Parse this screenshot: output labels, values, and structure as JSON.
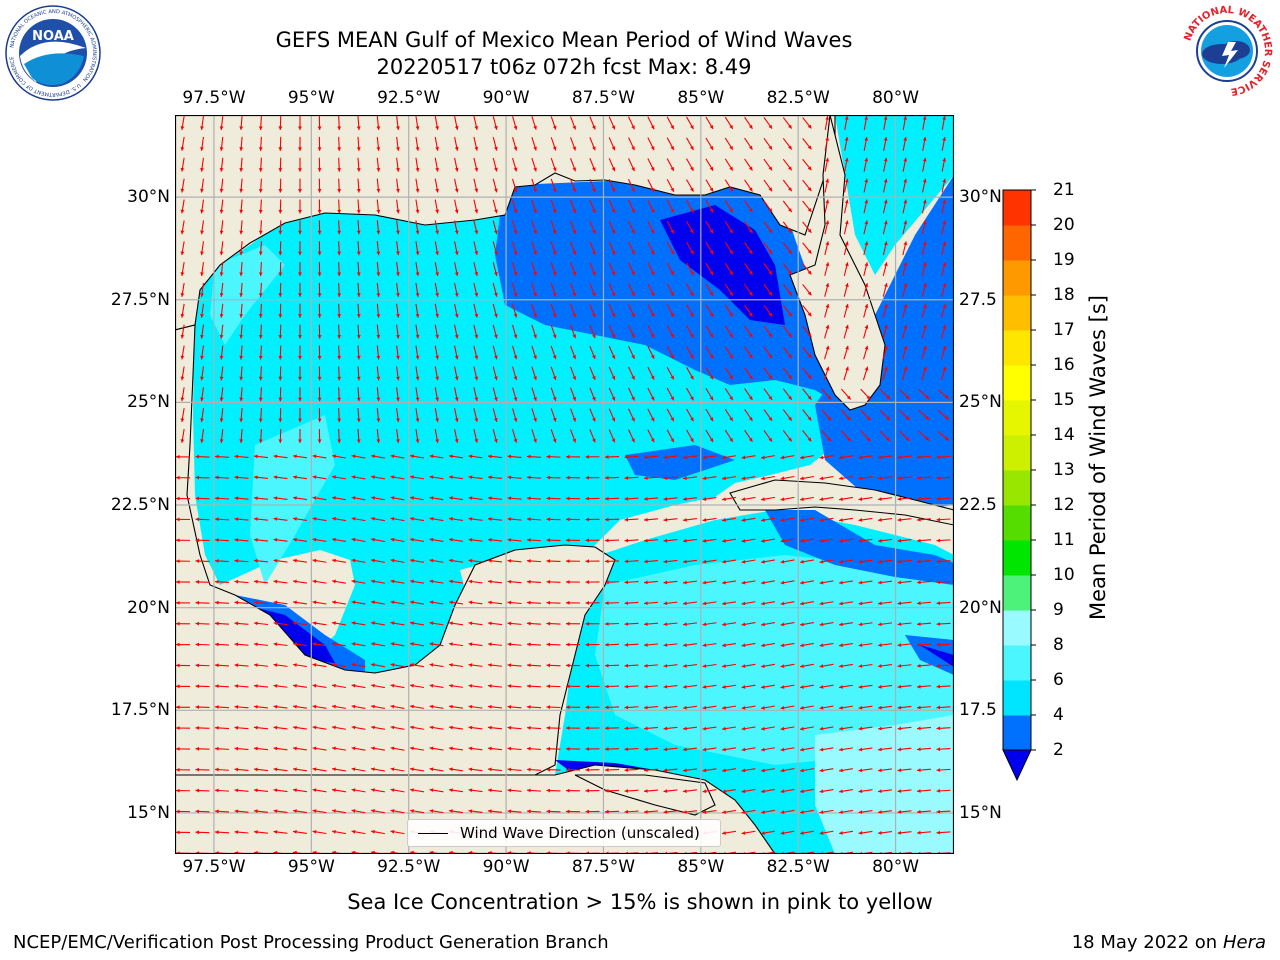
{
  "title": {
    "line1": "GEFS MEAN Gulf of Mexico Mean Period of Wind Waves",
    "line2": "20220517 t06z 072h fcst   Max: 8.49"
  },
  "map": {
    "lon_range": [
      -98.5,
      -78.5
    ],
    "lat_range": [
      14.0,
      32.0
    ],
    "lon_ticks": [
      "97.5°W",
      "95°W",
      "92.5°W",
      "90°W",
      "87.5°W",
      "85°W",
      "82.5°W",
      "80°W"
    ],
    "lon_tick_values": [
      -97.5,
      -95,
      -92.5,
      -90,
      -87.5,
      -85,
      -82.5,
      -80
    ],
    "lat_ticks_left": [
      "15°N",
      "17.5°N",
      "20°N",
      "22.5°N",
      "25°N",
      "27.5°N",
      "30°N"
    ],
    "lat_ticks_right": [
      "15°N",
      "17.5",
      "20°N",
      "22.5",
      "25°N",
      "27.5",
      "30°N"
    ],
    "lat_tick_values": [
      15,
      17.5,
      20,
      22.5,
      25,
      27.5,
      30
    ],
    "land_color": "#efecdc",
    "grid": true,
    "grid_color": "#b0b0b0"
  },
  "colorbar": {
    "label": "Mean Period of Wind Waves [s]",
    "tick_labels": [
      "2",
      "4",
      "6",
      "8",
      "9",
      "10",
      "11",
      "12",
      "13",
      "14",
      "15",
      "16",
      "17",
      "18",
      "19",
      "20",
      "21"
    ],
    "colors": [
      "#0070ff",
      "#00e5ff",
      "#4cf6ff",
      "#99fbff",
      "#4cf27a",
      "#00e600",
      "#55dd00",
      "#99e600",
      "#ccf000",
      "#e6f500",
      "#ffff00",
      "#ffe600",
      "#ffbf00",
      "#ff9900",
      "#ff6600",
      "#ff3300"
    ],
    "under_color": "#0000ee"
  },
  "legend": {
    "label": "Wind Wave Direction (unscaled)"
  },
  "bottom_note": "Sea Ice Concentration > 15% is shown in pink to yellow",
  "footer": {
    "left": "NCEP/EMC/Verification Post Processing Product Generation Branch",
    "right_date": "18 May 2022 on",
    "right_machine": "Hera"
  },
  "logos": {
    "noaa_text": "NOAA",
    "nws_ring_text": "NATIONAL WEATHER SERVICE"
  },
  "arrow_color": "#ff0000"
}
